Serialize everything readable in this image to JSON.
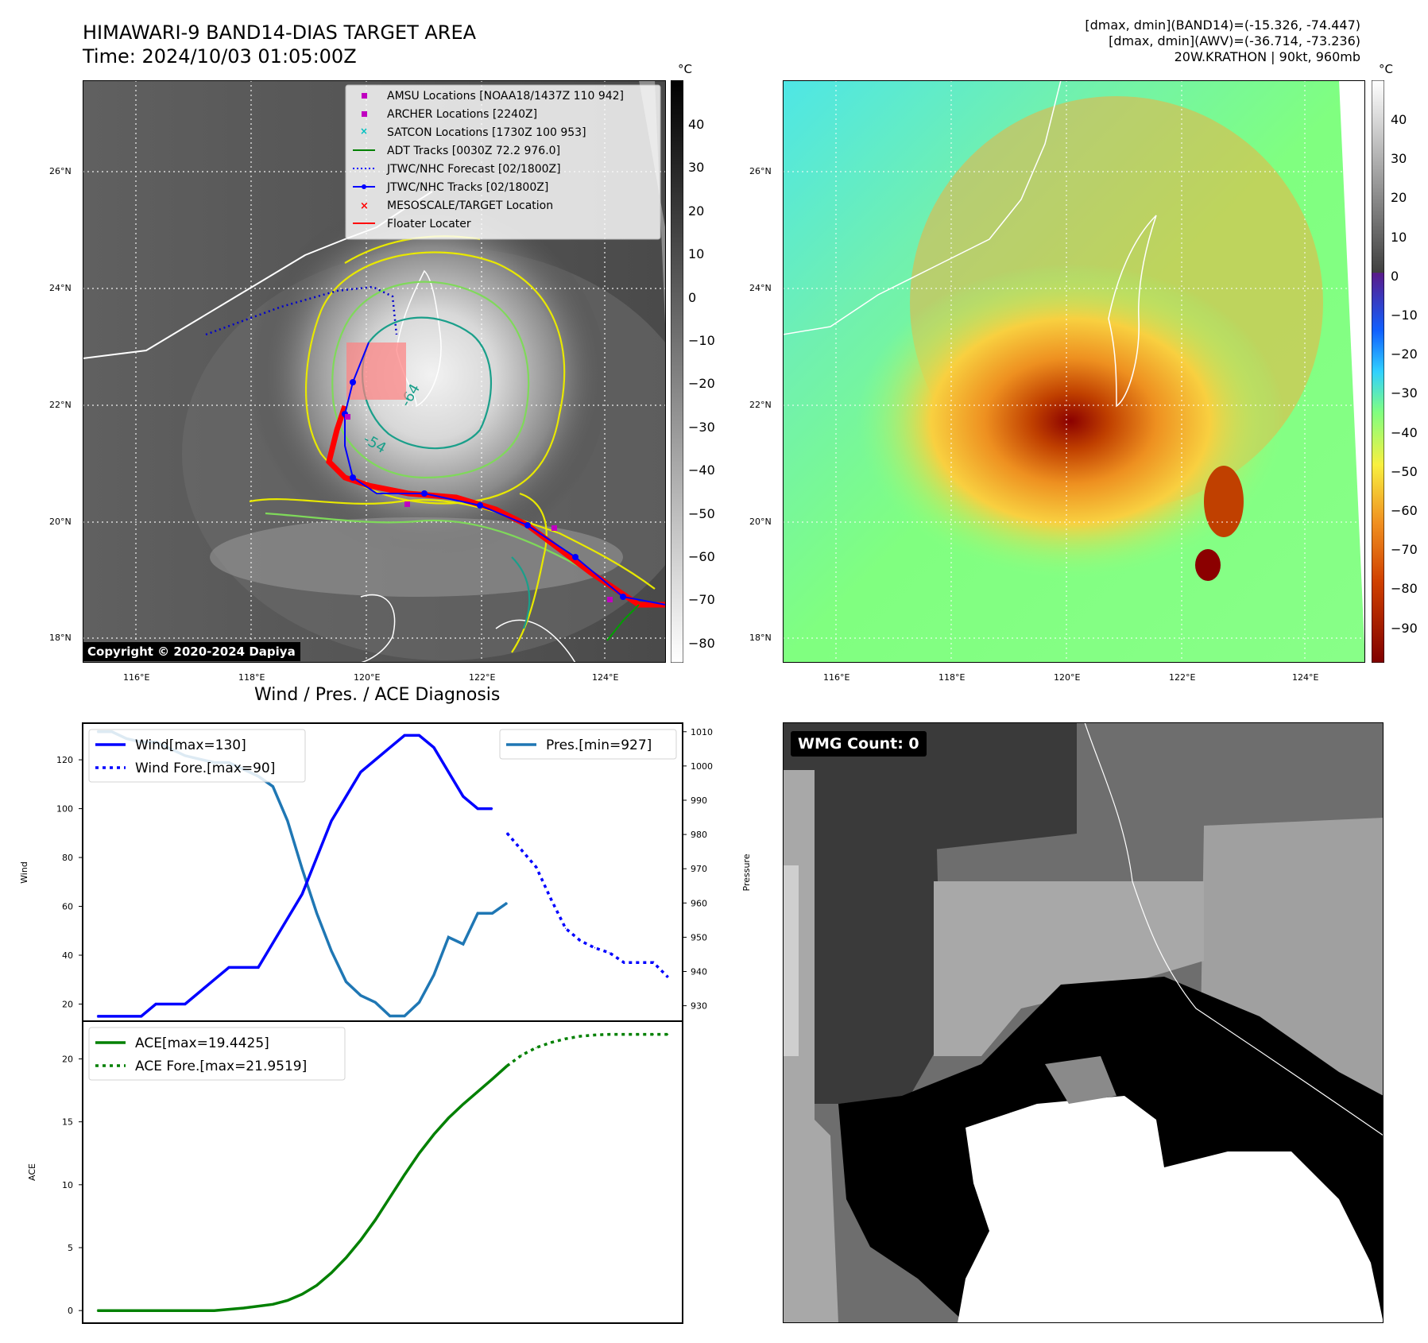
{
  "header": {
    "title_line1": "HIMAWARI-9 BAND14-DIAS TARGET AREA",
    "title_line2": "Time: 2024/10/03 01:05:00Z",
    "info_line1": "[dmax, dmin](BAND14)=(-15.326, -74.447)",
    "info_line2": "[dmax, dmin](AWV)=(-36.714, -73.236)",
    "info_line3": "20W.KRATHON | 90kt, 960mb"
  },
  "map": {
    "lon_labels": [
      "116°E",
      "118°E",
      "120°E",
      "122°E",
      "124°E"
    ],
    "lat_labels": [
      "26°N",
      "24°N",
      "22°N",
      "20°N",
      "18°N"
    ],
    "contour_labels": [
      "-64",
      "-54"
    ],
    "copyright": "Copyright © 2020-2024 Dapiya",
    "legend": [
      "AMSU Locations [NOAA18/1437Z 110 942]",
      "ARCHER Locations [2240Z]",
      "SATCON Locations [1730Z 100 953]",
      "ADT Tracks [0030Z 72.2 976.0]",
      "JTWC/NHC Forecast [02/1800Z]",
      "JTWC/NHC Tracks [02/1800Z]",
      "MESOSCALE/TARGET Location",
      "Floater Locater"
    ],
    "colorbar_left": {
      "unit": "°C",
      "ticks": [
        "40",
        "30",
        "20",
        "10",
        "0",
        "−10",
        "−20",
        "−30",
        "−40",
        "−50",
        "−60",
        "−70",
        "−80"
      ]
    },
    "colorbar_right": {
      "unit": "°C",
      "ticks": [
        "40",
        "30",
        "20",
        "10",
        "0",
        "−10",
        "−20",
        "−30",
        "−40",
        "−50",
        "−60",
        "−70",
        "−80",
        "−90"
      ]
    }
  },
  "diagnosis": {
    "title": "Wind / Pres. / ACE Diagnosis",
    "wind_axis_label": "Wind",
    "pressure_axis_label": "Pressure",
    "ace_axis_label": "ACE",
    "wind_ticks": [
      "120",
      "100",
      "80",
      "60",
      "40",
      "20"
    ],
    "pressure_ticks": [
      "1010",
      "1000",
      "990",
      "980",
      "970",
      "960",
      "950",
      "940",
      "930"
    ],
    "ace_ticks": [
      "20",
      "15",
      "10",
      "5",
      "0"
    ]
  },
  "wmg": {
    "label": "WMG Count: 0"
  },
  "chart_data": [
    {
      "type": "line",
      "title": "Wind / Pres. / ACE Diagnosis",
      "ylabel": "Wind",
      "y2label": "Pressure",
      "ylim": [
        13,
        135
      ],
      "y2lim": [
        925.5,
        1012.5
      ],
      "xlim": [
        -1,
        40
      ],
      "series": [
        {
          "name": "Wind[max=130]",
          "axis": "left",
          "style": "solid",
          "color": "#0000ff",
          "x": [
            0,
            1,
            2,
            3,
            4,
            5,
            6,
            7,
            8,
            9,
            10,
            11,
            12,
            13,
            14,
            15,
            16,
            17,
            18,
            19,
            20,
            21,
            22,
            23,
            24,
            25,
            26,
            27
          ],
          "values": [
            15,
            15,
            15,
            15,
            20,
            20,
            20,
            25,
            30,
            35,
            35,
            35,
            45,
            55,
            65,
            80,
            95,
            105,
            115,
            120,
            125,
            130,
            130,
            125,
            115,
            105,
            100,
            100
          ]
        },
        {
          "name": "Wind Fore.[max=90]",
          "axis": "left",
          "style": "dotted",
          "color": "#0000ff",
          "x": [
            28,
            29,
            30,
            31,
            32,
            33,
            34,
            35,
            36,
            37,
            38,
            39
          ],
          "values": [
            90,
            83,
            76,
            63,
            51,
            46,
            43,
            41,
            37,
            37,
            37,
            31
          ]
        },
        {
          "name": "Pres.[min=927]",
          "axis": "right",
          "style": "solid",
          "color": "#1f77b4",
          "x": [
            0,
            1,
            2,
            3,
            4,
            5,
            6,
            7,
            8,
            9,
            10,
            11,
            12,
            13,
            14,
            15,
            16,
            17,
            18,
            19,
            20,
            21,
            22,
            23,
            24,
            25,
            26,
            27,
            28
          ],
          "values": [
            1010,
            1010,
            1008,
            1007,
            1007,
            1005,
            1003,
            1002,
            1001,
            1001,
            999,
            997,
            994,
            984,
            970,
            957,
            946,
            937,
            933,
            931,
            927,
            927,
            931,
            939,
            950,
            948,
            957,
            957,
            960
          ]
        }
      ]
    },
    {
      "type": "line",
      "ylabel": "ACE",
      "ylim": [
        -1,
        23
      ],
      "xlim": [
        -1,
        40
      ],
      "series": [
        {
          "name": "ACE[max=19.4425]",
          "style": "solid",
          "color": "#008000",
          "x": [
            0,
            2,
            4,
            6,
            8,
            10,
            12,
            13,
            14,
            15,
            16,
            17,
            18,
            19,
            20,
            21,
            22,
            23,
            24,
            25,
            26,
            27,
            28
          ],
          "values": [
            0,
            0,
            0,
            0,
            0,
            0.2,
            0.5,
            0.8,
            1.3,
            2.0,
            3.0,
            4.2,
            5.6,
            7.2,
            9.0,
            10.8,
            12.5,
            14.0,
            15.3,
            16.4,
            17.4,
            18.4,
            19.4425
          ]
        },
        {
          "name": "ACE Fore.[max=21.9519]",
          "style": "dotted",
          "color": "#008000",
          "x": [
            28,
            29,
            30,
            31,
            32,
            33,
            34,
            35,
            36,
            37,
            38,
            39
          ],
          "values": [
            19.4425,
            20.3,
            20.9,
            21.3,
            21.6,
            21.8,
            21.9,
            21.95,
            21.9519,
            21.9519,
            21.9519,
            21.9519
          ]
        }
      ]
    }
  ]
}
